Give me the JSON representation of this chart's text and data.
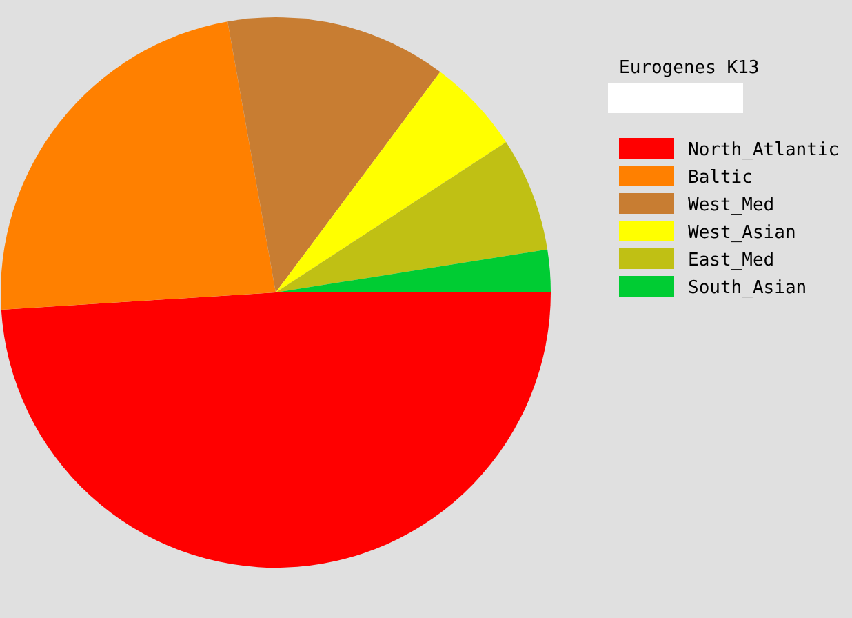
{
  "chart_data": {
    "type": "pie",
    "legend_title": "Eurogenes K13",
    "categories": [
      "North_Atlantic",
      "Baltic",
      "West_Med",
      "West_Asian",
      "East_Med",
      "South_Asian"
    ],
    "values": [
      49.0,
      23.2,
      13.0,
      5.6,
      6.7,
      2.5
    ],
    "colors": [
      "#ff0000",
      "#ff8000",
      "#c87d32",
      "#ffff00",
      "#c0c014",
      "#00cc33"
    ],
    "legend": "top right"
  }
}
